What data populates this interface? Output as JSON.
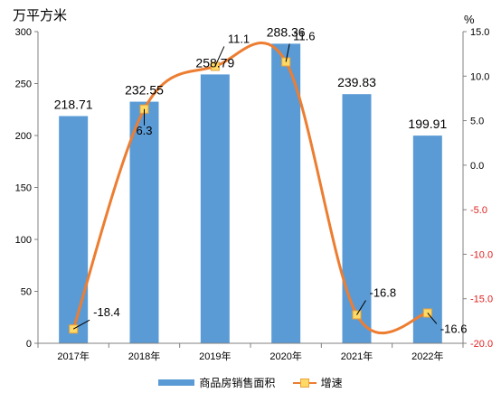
{
  "chart_data": {
    "type": "bar",
    "categories": [
      "2017年",
      "2018年",
      "2019年",
      "2020年",
      "2021年",
      "2022年"
    ],
    "y_left_label": "万平方米",
    "y_right_label": "%",
    "y_left_lim": [
      0,
      300
    ],
    "y_left_ticks": [
      0,
      50,
      100,
      150,
      200,
      250,
      300
    ],
    "y_right_lim": [
      -20,
      15
    ],
    "y_right_ticks": [
      15.0,
      10.0,
      5.0,
      0.0,
      -5.0,
      -10.0,
      -15.0,
      -20.0
    ],
    "series": [
      {
        "name": "商品房销售面积",
        "type": "bar",
        "axis": "left",
        "color": "#5b9bd5",
        "values": [
          218.71,
          232.55,
          258.79,
          288.36,
          239.83,
          199.91
        ]
      },
      {
        "name": "增速",
        "type": "line",
        "axis": "right",
        "color": "#ed7d31",
        "values": [
          -18.4,
          6.3,
          11.1,
          11.6,
          -16.8,
          -16.6
        ]
      }
    ],
    "negative_tick_color": "#e02020",
    "grid": false,
    "legend_position": "bottom"
  }
}
